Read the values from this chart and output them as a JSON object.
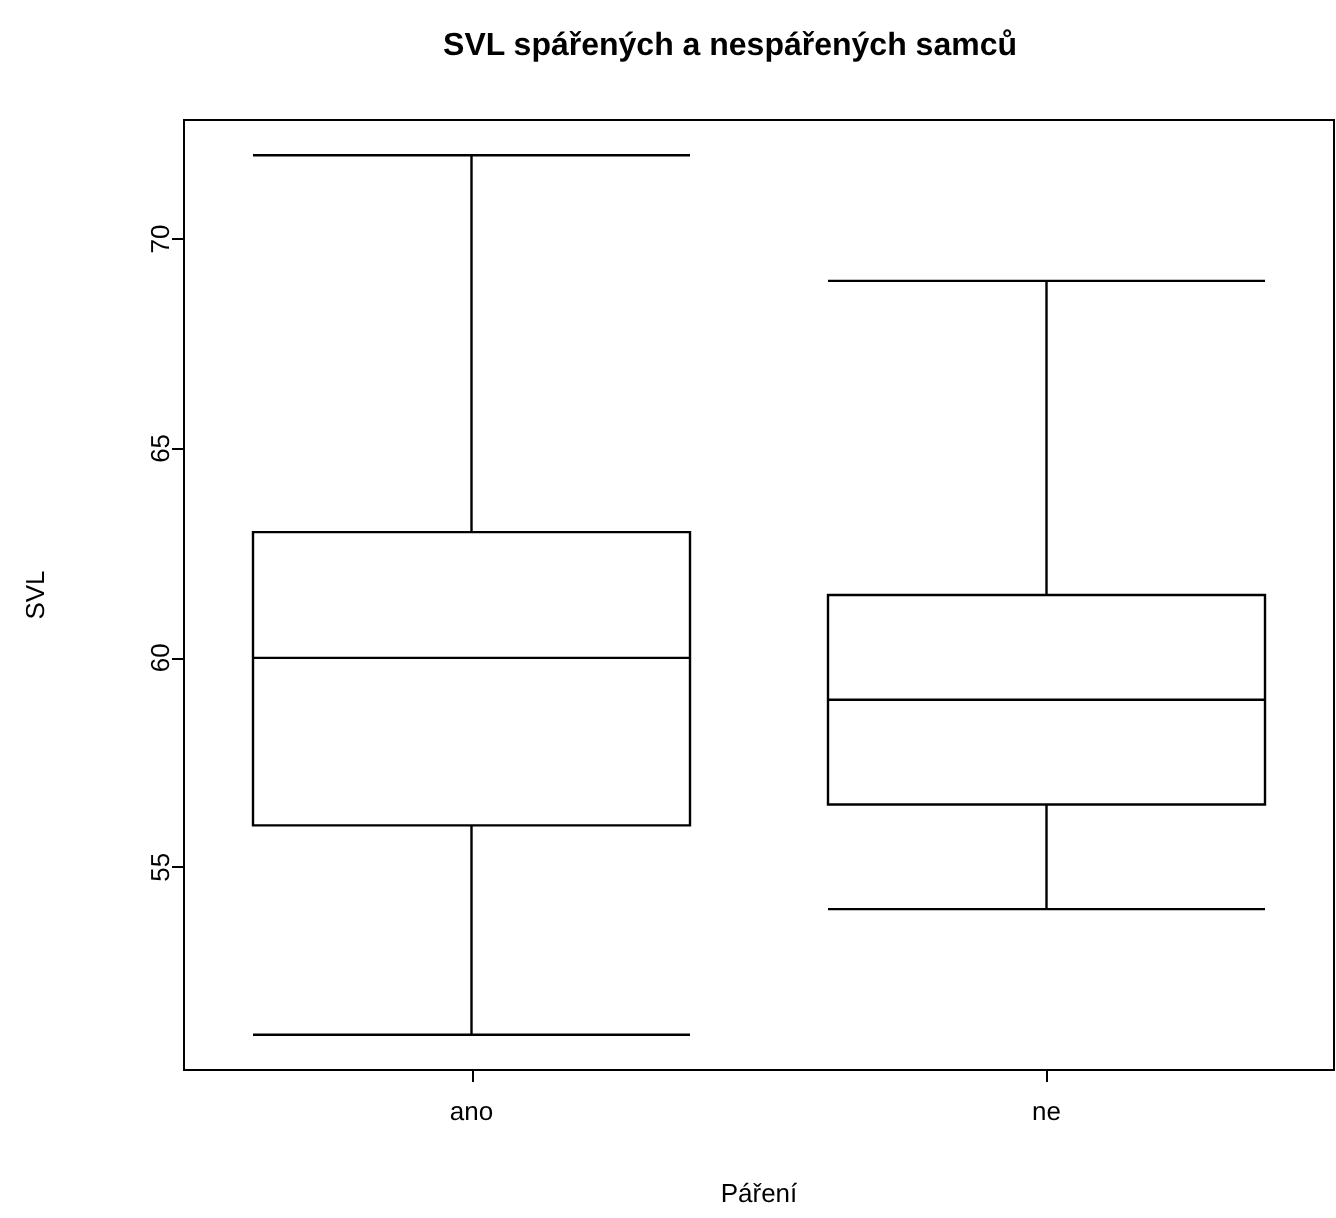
{
  "chart_data": {
    "type": "box",
    "title": "SVL spářených a nespářených samců",
    "xlabel": "Páření",
    "ylabel": "SVL",
    "categories": [
      "ano",
      "ne"
    ],
    "boxes": [
      {
        "low": 51,
        "q1": 56,
        "median": 60,
        "q3": 63,
        "high": 72
      },
      {
        "low": 54,
        "q1": 56.5,
        "median": 59,
        "q3": 61.5,
        "high": 69
      }
    ],
    "color": "#000000",
    "ylim": [
      50.16,
      72.84
    ],
    "yticks": [
      55,
      60,
      65,
      70
    ],
    "grid": false
  }
}
